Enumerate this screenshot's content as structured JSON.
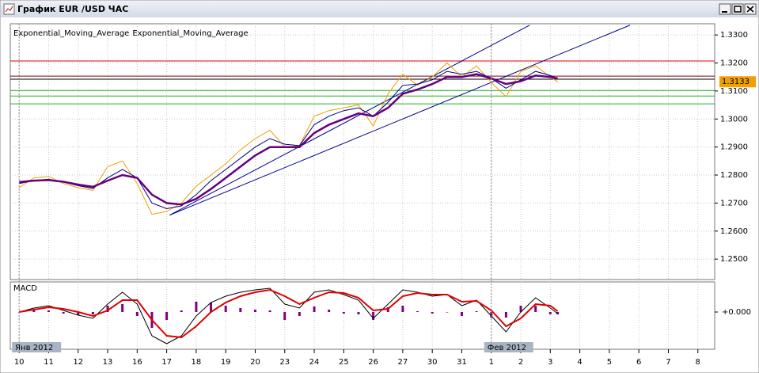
{
  "window": {
    "title": "График EUR /USD  ЧАС"
  },
  "chart_data": [
    {
      "type": "line",
      "x": [
        0,
        0.5,
        1,
        1.5,
        2,
        2.5,
        3,
        3.5,
        4,
        4.5,
        5,
        5.5,
        6,
        6.5,
        7,
        7.5,
        8,
        8.5,
        9,
        9.5,
        10,
        10.5,
        11,
        11.5,
        12,
        12.5,
        13,
        13.5,
        14,
        14.5,
        15,
        15.5,
        16,
        16.5,
        17,
        17.5,
        18,
        18.25
      ],
      "series": [
        {
          "color": "#f0a000",
          "values": [
            1.2755,
            1.279,
            1.2795,
            1.277,
            1.2755,
            1.2745,
            1.283,
            1.285,
            1.277,
            1.266,
            1.267,
            1.27,
            1.276,
            1.28,
            1.284,
            1.289,
            1.293,
            1.296,
            1.29,
            1.2905,
            1.301,
            1.303,
            1.304,
            1.305,
            1.2975,
            1.309,
            1.316,
            1.312,
            1.315,
            1.32,
            1.315,
            1.319,
            1.313,
            1.308,
            1.317,
            1.319,
            1.315,
            1.3133
          ]
        },
        {
          "name": "Exponential_Moving_Average",
          "color": "#000080",
          "values": [
            1.277,
            1.278,
            1.2785,
            1.2775,
            1.2762,
            1.2752,
            1.279,
            1.282,
            1.279,
            1.27,
            1.268,
            1.269,
            1.273,
            1.278,
            1.282,
            1.286,
            1.29,
            1.293,
            1.291,
            1.2905,
            1.298,
            1.301,
            1.303,
            1.304,
            1.301,
            1.306,
            1.312,
            1.3125,
            1.314,
            1.317,
            1.316,
            1.317,
            1.3145,
            1.311,
            1.314,
            1.317,
            1.3155,
            1.3145
          ]
        },
        {
          "name": "Exponential_Moving_Average",
          "color": "#660080",
          "values": [
            1.2775,
            1.278,
            1.2782,
            1.2776,
            1.2766,
            1.2758,
            1.278,
            1.28,
            1.279,
            1.273,
            1.27,
            1.2695,
            1.2715,
            1.275,
            1.279,
            1.283,
            1.287,
            1.29,
            1.29,
            1.29,
            1.295,
            1.298,
            1.3,
            1.302,
            1.301,
            1.304,
            1.309,
            1.3105,
            1.3125,
            1.315,
            1.315,
            1.316,
            1.3145,
            1.3125,
            1.3135,
            1.3155,
            1.315,
            1.3145
          ]
        }
      ],
      "xlim": [
        -0.3,
        23.57
      ],
      "xticks": [
        {
          "value": 0,
          "label": "10"
        },
        {
          "value": 1,
          "label": "11"
        },
        {
          "value": 2,
          "label": "12"
        },
        {
          "value": 3,
          "label": "13"
        },
        {
          "value": 4,
          "label": "16"
        },
        {
          "value": 5,
          "label": "17"
        },
        {
          "value": 6,
          "label": "18"
        },
        {
          "value": 7,
          "label": "19"
        },
        {
          "value": 8,
          "label": "20"
        },
        {
          "value": 9,
          "label": "23"
        },
        {
          "value": 10,
          "label": "24"
        },
        {
          "value": 11,
          "label": "25"
        },
        {
          "value": 12,
          "label": "26"
        },
        {
          "value": 13,
          "label": "27"
        },
        {
          "value": 14,
          "label": "30"
        },
        {
          "value": 15,
          "label": "31"
        },
        {
          "value": 16,
          "label": "1"
        },
        {
          "value": 17,
          "label": "2"
        },
        {
          "value": 18,
          "label": "3"
        },
        {
          "value": 19,
          "label": "4"
        },
        {
          "value": 20,
          "label": "5"
        },
        {
          "value": 21,
          "label": "6"
        },
        {
          "value": 22,
          "label": "7"
        },
        {
          "value": 23,
          "label": "8"
        }
      ],
      "period_labels": [
        {
          "value": 0,
          "label": "Янв 2012"
        },
        {
          "value": 16,
          "label": "Фев 2012"
        }
      ],
      "ylim": [
        1.2427,
        1.334
      ],
      "yticks": [
        {
          "value": 1.25,
          "label": "1.2500"
        },
        {
          "value": 1.26,
          "label": "1.2600"
        },
        {
          "value": 1.27,
          "label": "1.2700"
        },
        {
          "value": 1.28,
          "label": "1.2800"
        },
        {
          "value": 1.29,
          "label": "1.2900"
        },
        {
          "value": 1.3,
          "label": "1.3000"
        },
        {
          "value": 1.31,
          "label": "1.3100"
        },
        {
          "value": 1.32,
          "label": "1.3200"
        },
        {
          "value": 1.33,
          "label": "1.3300"
        }
      ],
      "grid": true,
      "levels": [
        {
          "value": 1.3207,
          "color": "#e00000"
        },
        {
          "value": 1.3153,
          "color": "#800000"
        },
        {
          "value": 1.3142,
          "color": "#000000"
        },
        {
          "value": 1.3102,
          "color": "#20b020"
        },
        {
          "value": 1.3082,
          "color": "#20b020"
        },
        {
          "value": 1.3054,
          "color": "#20b020"
        }
      ],
      "trendlines": [
        {
          "x": [
            5.1,
            17.3
          ],
          "y": [
            1.2657,
            1.3335
          ],
          "color": "#000090"
        },
        {
          "x": [
            5.1,
            20.7
          ],
          "y": [
            1.2657,
            1.3335
          ],
          "color": "#000090"
        }
      ],
      "current_price": 1.3133
    },
    {
      "type": "macd",
      "title": "MACD",
      "x": [
        0,
        0.5,
        1,
        1.5,
        2,
        2.5,
        3,
        3.5,
        4,
        4.5,
        5,
        5.5,
        6,
        6.5,
        7,
        7.5,
        8,
        8.5,
        9,
        9.5,
        10,
        10.5,
        11,
        11.5,
        12,
        12.5,
        13,
        13.5,
        14,
        14.5,
        15,
        15.5,
        16,
        16.5,
        17,
        17.5,
        18,
        18.25
      ],
      "histogram": {
        "color": "#800080",
        "values": [
          0,
          0.0002,
          0.0002,
          -0.0002,
          -0.0004,
          -0.0003,
          0.0008,
          0.001,
          -0.0005,
          -0.002,
          -0.001,
          0.0002,
          0.0013,
          0.0012,
          0.0008,
          0.0005,
          0.0003,
          0.0002,
          -0.001,
          -0.0005,
          0.0007,
          0.0003,
          -0.0002,
          -0.0003,
          -0.001,
          0.0006,
          0.0008,
          0.0001,
          -0.0002,
          0,
          -0.0005,
          0.0001,
          -0.0007,
          -0.0007,
          0.0008,
          0.0008,
          -0.0003,
          -0.0003
        ]
      },
      "series": [
        {
          "color": "#000000",
          "values": [
            0,
            0.0005,
            0.0008,
            0.0002,
            -0.0004,
            -0.0008,
            0.001,
            0.0025,
            0.001,
            -0.003,
            -0.004,
            -0.003,
            -0.0005,
            0.0012,
            0.002,
            0.0025,
            0.0028,
            0.003,
            0.001,
            0.0005,
            0.0025,
            0.0028,
            0.0022,
            0.0015,
            -0.0008,
            0.001,
            0.0028,
            0.0025,
            0.002,
            0.0022,
            0.0008,
            0.0015,
            -0.0005,
            -0.0025,
            0,
            0.0018,
            0.0005,
            -0.0002
          ]
        },
        {
          "color": "#e00000",
          "values": [
            0,
            0.0003,
            0.0006,
            0.0004,
            0,
            -0.0005,
            0.0002,
            0.0015,
            0.0015,
            -0.001,
            -0.003,
            -0.0032,
            -0.0018,
            0,
            0.0012,
            0.002,
            0.0025,
            0.0028,
            0.002,
            0.001,
            0.0018,
            0.0025,
            0.0024,
            0.0018,
            0.0002,
            0.0004,
            0.002,
            0.0024,
            0.0022,
            0.0022,
            0.0013,
            0.0014,
            0.0002,
            -0.0018,
            -0.0008,
            0.001,
            0.0008,
            0.0001
          ]
        }
      ],
      "ylim": [
        -0.0047,
        0.0038
      ],
      "yticks": [
        {
          "value": 0,
          "label": "+0.000"
        }
      ]
    }
  ]
}
